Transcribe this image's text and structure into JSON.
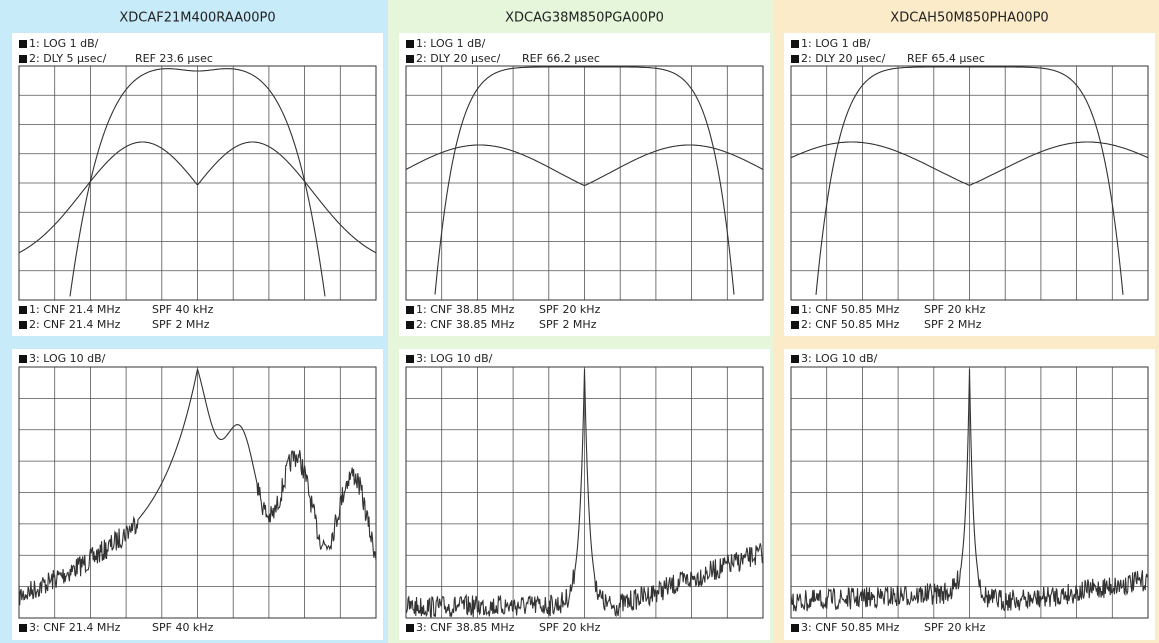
{
  "columns": [
    {
      "title": "XDCAF21M400RAA00P0",
      "top": {
        "header": [
          "1: LOG 1 dB/",
          "2: DLY 5 µsec/"
        ],
        "ref": "REF 23.6 µsec",
        "footer": [
          [
            "1: CNF 21.4 MHz",
            "SPF 40 kHz"
          ],
          [
            "2: CNF 21.4 MHz",
            "SPF 2 MHz"
          ]
        ]
      },
      "bottom": {
        "header": "3: LOG 10 dB/",
        "footer": [
          "3: CNF 21.4 MHz",
          "SPF 40 kHz"
        ]
      }
    },
    {
      "title": "XDCAG38M850PGA00P0",
      "top": {
        "header": [
          "1: LOG 1 dB/",
          "2: DLY 20 µsec/"
        ],
        "ref": "REF 66.2 µsec",
        "footer": [
          [
            "1: CNF 38.85 MHz",
            "SPF 20 kHz"
          ],
          [
            "2: CNF 38.85 MHz",
            "SPF 2 MHz"
          ]
        ]
      },
      "bottom": {
        "header": "3: LOG 10 dB/",
        "footer": [
          "3: CNF 38.85 MHz",
          "SPF 20 kHz"
        ]
      }
    },
    {
      "title": "XDCAH50M850PHA00P0",
      "top": {
        "header": [
          "1: LOG 1 dB/",
          "2: DLY 20 µsec/"
        ],
        "ref": "REF 65.4 µsec",
        "footer": [
          [
            "1: CNF 50.85 MHz",
            "SPF 20 kHz"
          ],
          [
            "2: CNF 50.85 MHz",
            "SPF 2 MHz"
          ]
        ]
      },
      "bottom": {
        "header": "3: LOG 10 dB/",
        "footer": [
          "3: CNF 50.85 MHz",
          "SPF 20 kHz"
        ]
      }
    }
  ]
}
